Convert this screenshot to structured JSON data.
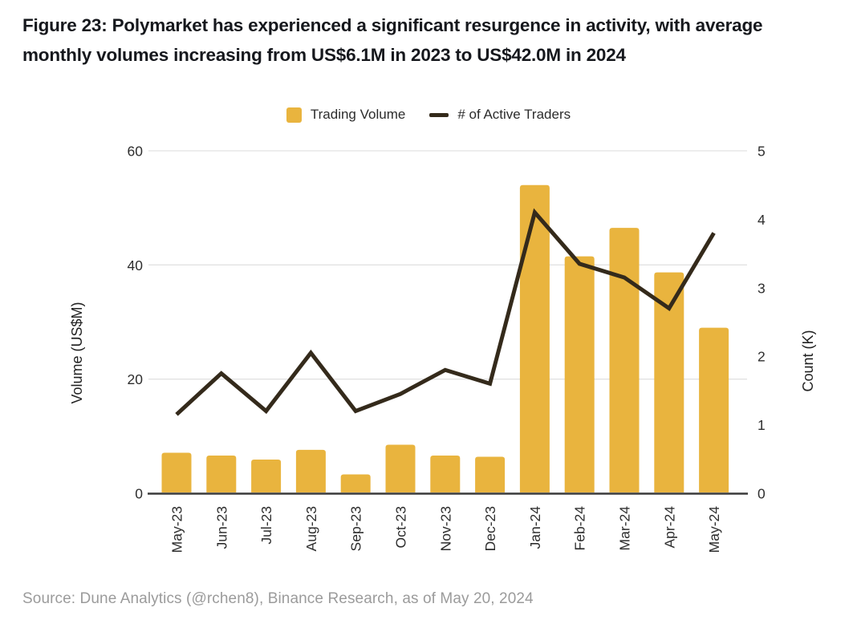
{
  "figure": {
    "title": "Figure 23: Polymarket has experienced a significant resurgence in activity, with average monthly volumes increasing from US$6.1M in 2023 to US$42.0M in 2024",
    "source": "Source: Dune Analytics (@rchen8), Binance Research, as of May 20, 2024"
  },
  "legend": {
    "items": [
      {
        "label": "Trading Volume",
        "swatch": "square",
        "color": "#e9b43e"
      },
      {
        "label": "# of Active Traders",
        "swatch": "dash",
        "color": "#342a1b"
      }
    ],
    "position": "top-center"
  },
  "colors": {
    "bar": "#e9b43e",
    "line": "#342a1b",
    "gridline": "#e2e2e2",
    "axis_line": "#3a3a3a",
    "tick_text": "#2e2e2e",
    "source_text": "#9b9b9b",
    "title_text": "#16181d"
  },
  "chart_data": {
    "type": "combo (bar + line)",
    "categories": [
      "May-23",
      "Jun-23",
      "Jul-23",
      "Aug-23",
      "Sep-23",
      "Oct-23",
      "Nov-23",
      "Dec-23",
      "Jan-24",
      "Feb-24",
      "Mar-24",
      "Apr-24",
      "May-24"
    ],
    "series": [
      {
        "name": "Trading Volume",
        "type": "bar",
        "axis": "left",
        "color": "#e9b43e",
        "values": [
          7.1,
          6.6,
          5.9,
          7.6,
          3.3,
          8.5,
          6.6,
          6.4,
          54.0,
          41.5,
          46.5,
          38.7,
          29.0
        ]
      },
      {
        "name": "# of Active Traders",
        "type": "line",
        "axis": "right",
        "color": "#342a1b",
        "values": [
          1.15,
          1.75,
          1.2,
          2.05,
          1.2,
          1.45,
          1.8,
          1.6,
          4.1,
          3.35,
          3.15,
          2.7,
          3.8
        ]
      }
    ],
    "left_axis": {
      "label": "Volume (US$M)",
      "min": 0,
      "max": 60,
      "ticks": [
        0,
        20,
        40,
        60
      ]
    },
    "right_axis": {
      "label": "Count (K)",
      "min": 0,
      "max": 5,
      "ticks": [
        0,
        1,
        2,
        3,
        4,
        5
      ]
    },
    "x_axis": {
      "tick_rotation_deg": -90
    },
    "grid": "horizontal gridlines at left-axis ticks 20/40/60, dark baseline at 0",
    "legend_position": "top"
  }
}
